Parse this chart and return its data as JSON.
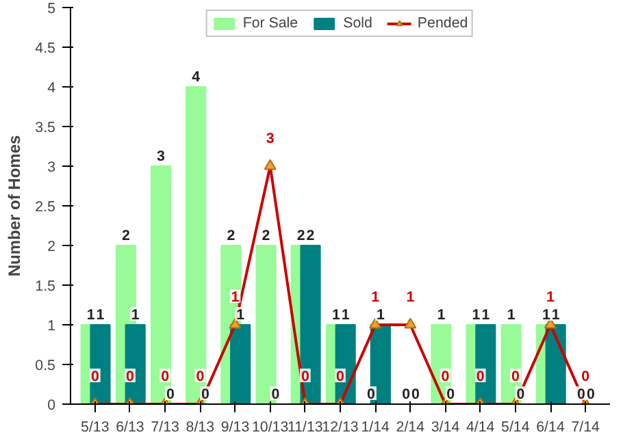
{
  "chart_data": {
    "type": "bar",
    "ylabel": "Number of Homes",
    "categories": [
      "5/13",
      "6/13",
      "7/13",
      "8/13",
      "9/13",
      "10/13",
      "11/13",
      "12/13",
      "1/14",
      "2/14",
      "3/14",
      "4/14",
      "5/14",
      "6/14",
      "7/14"
    ],
    "series": [
      {
        "name": "For Sale",
        "color": "#98fb98",
        "values": [
          1,
          2,
          3,
          4,
          2,
          2,
          2,
          1,
          0,
          0,
          1,
          1,
          1,
          1,
          0
        ]
      },
      {
        "name": "Sold",
        "color": "#008080",
        "values": [
          1,
          1,
          0,
          0,
          1,
          0,
          2,
          1,
          1,
          0,
          0,
          1,
          0,
          1,
          0
        ]
      },
      {
        "name": "Pended",
        "type": "line",
        "color": "#cc0000",
        "marker": "triangle",
        "values": [
          0,
          0,
          0,
          0,
          1,
          3,
          0,
          0,
          1,
          1,
          0,
          0,
          0,
          1,
          0
        ]
      }
    ],
    "ylim": [
      0,
      5
    ],
    "yticks": [
      0,
      0.5,
      1,
      1.5,
      2,
      2.5,
      3,
      3.5,
      4,
      4.5,
      5
    ],
    "grid": false,
    "legend": "top",
    "data_labels": true
  }
}
